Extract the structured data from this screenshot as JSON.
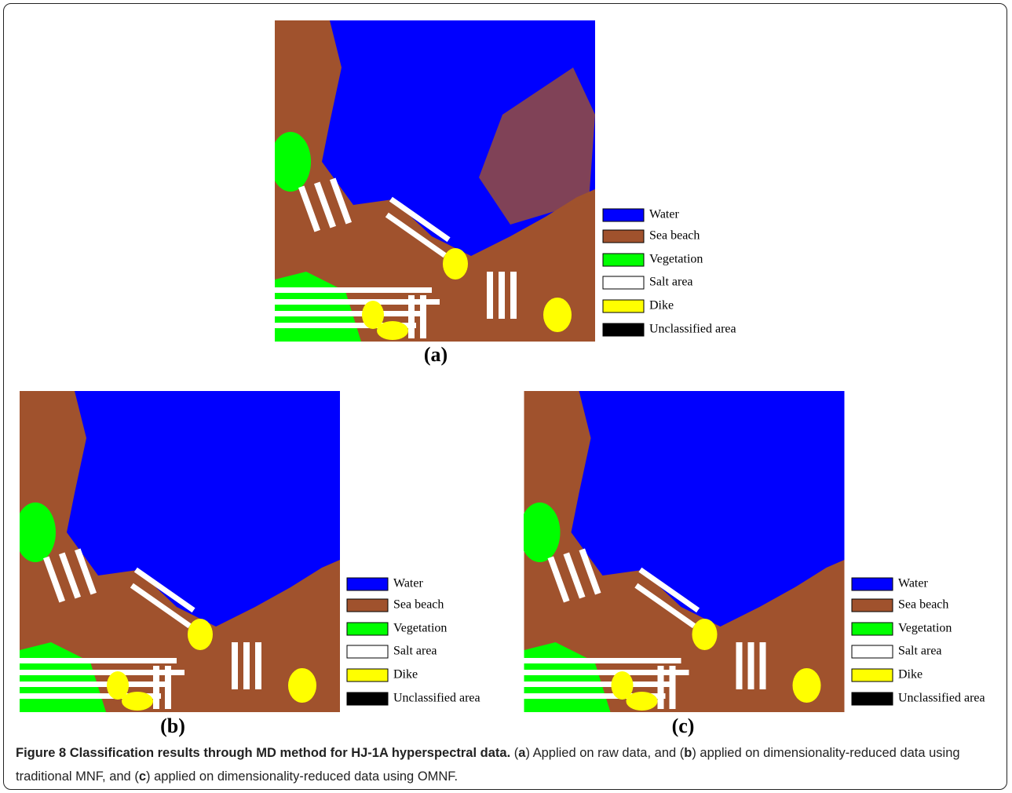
{
  "figure": {
    "panels": [
      {
        "label": "(a)",
        "legend": [
          {
            "name": "Water",
            "color": "#0000ff"
          },
          {
            "name": "Sea beach",
            "color": "#a0522d"
          },
          {
            "name": "Vegetation",
            "color": "#00ff00"
          },
          {
            "name": "Salt area",
            "color": "#ffffff"
          },
          {
            "name": "Dike",
            "color": "#ffff00"
          },
          {
            "name": "Unclassified area",
            "color": "#000000"
          }
        ]
      },
      {
        "label": "(b)",
        "legend": [
          {
            "name": "Water",
            "color": "#0000ff"
          },
          {
            "name": "Sea beach",
            "color": "#a0522d"
          },
          {
            "name": "Vegetation",
            "color": "#00ff00"
          },
          {
            "name": "Salt area",
            "color": "#ffffff"
          },
          {
            "name": "Dike",
            "color": "#ffff00"
          },
          {
            "name": "Unclassified area",
            "color": "#000000"
          }
        ]
      },
      {
        "label": "(c)",
        "legend": [
          {
            "name": "Water",
            "color": "#0000ff"
          },
          {
            "name": "Sea beach",
            "color": "#a0522d"
          },
          {
            "name": "Vegetation",
            "color": "#00ff00"
          },
          {
            "name": "Salt area",
            "color": "#ffffff"
          },
          {
            "name": "Dike",
            "color": "#ffff00"
          },
          {
            "name": "Unclassified area",
            "color": "#000000"
          }
        ]
      }
    ],
    "caption": {
      "title": "Figure 8 Classification results through MD method for HJ-1A hyperspectral data.",
      "parts": [
        " (",
        "a",
        ") Applied on raw data, and (",
        "b",
        ") applied on dimensionality-reduced data using traditional MNF, and (",
        "c",
        ") applied on dimensionality-reduced data using OMNF."
      ]
    }
  }
}
